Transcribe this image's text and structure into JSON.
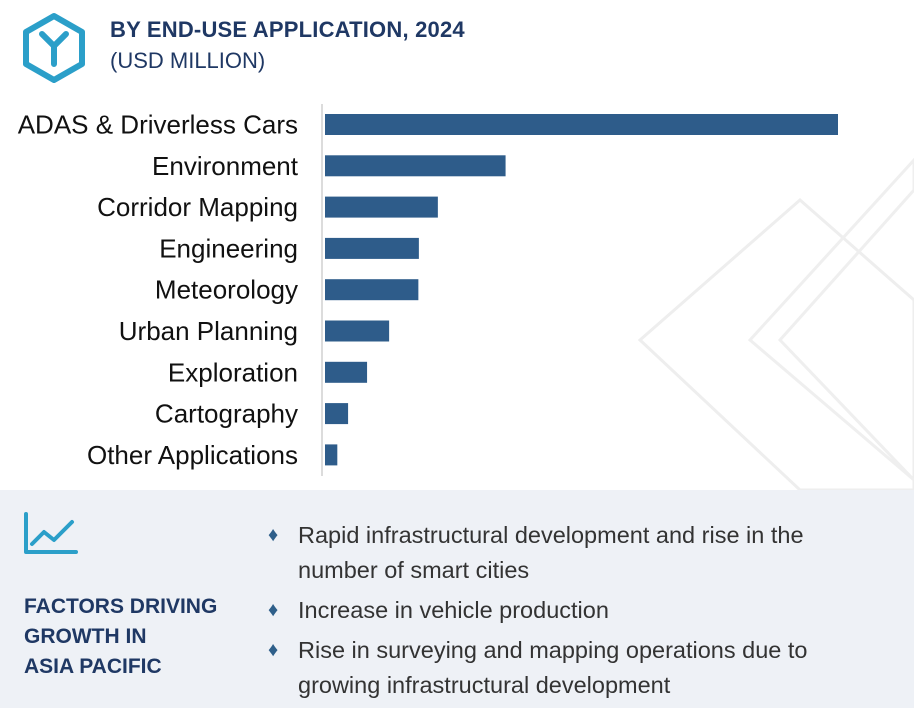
{
  "header": {
    "title": "BY END-USE APPLICATION, 2024",
    "subtitle": "(USD MILLION)",
    "logo_icon": "y-hexagon-logo-icon",
    "brand_color": "#2b9fc9"
  },
  "chart_data": {
    "type": "bar",
    "orientation": "horizontal",
    "title": "BY END-USE APPLICATION, 2024",
    "subtitle": "(USD MILLION)",
    "categories": [
      "ADAS & Driverless Cars",
      "Environment",
      "Corridor Mapping",
      "Engineering",
      "Meteorology",
      "Urban Planning",
      "Exploration",
      "Cartography",
      "Other Applications"
    ],
    "values": [
      1000,
      352,
      220,
      183,
      182,
      125,
      82,
      45,
      24
    ],
    "xlim": [
      0,
      1000
    ],
    "grid": false,
    "bar_color": "#2e5c8a"
  },
  "factors": {
    "icon": "trend-line-icon",
    "title_lines": [
      "FACTORS DRIVING",
      "GROWTH IN",
      "ASIA PACIFIC"
    ],
    "bullets": [
      "Rapid infrastructural development and rise in the number of smart cities",
      "Increase in vehicle production",
      "Rise in surveying and mapping operations due to growing infrastructural development"
    ]
  }
}
